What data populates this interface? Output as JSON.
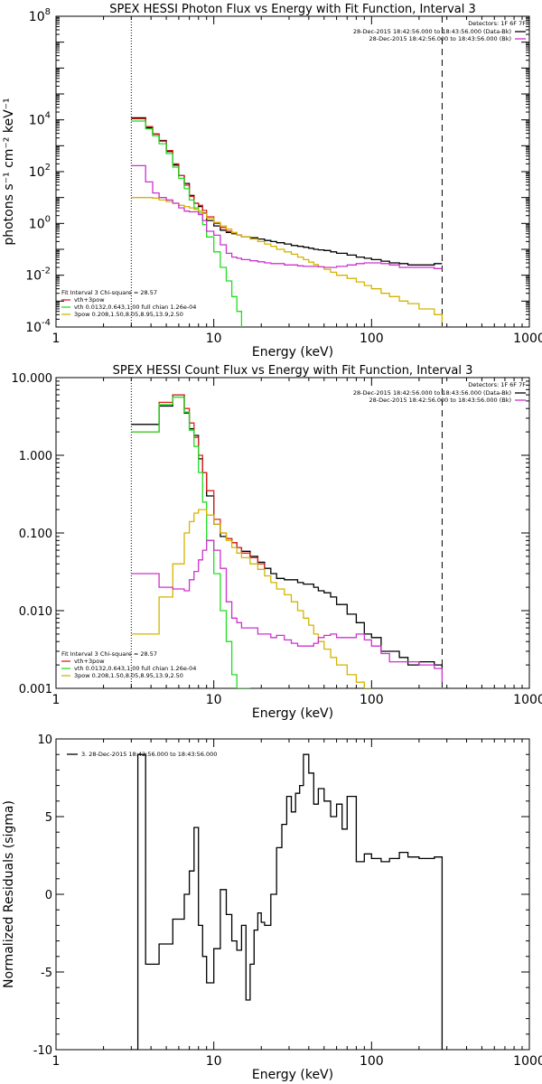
{
  "chart_data": [
    {
      "type": "line",
      "title": "SPEX HESSI Photon Flux vs Energy with Fit Function, Interval 3",
      "xlabel": "Energy (keV)",
      "ylabel": "photons s⁻¹ cm⁻² keV⁻¹",
      "xscale": "log",
      "yscale": "log",
      "xlim": [
        1,
        1000
      ],
      "ylim": [
        0.0001,
        100000000
      ],
      "x_ticks": [
        "1",
        "10",
        "100",
        "1000"
      ],
      "y_ticks": [
        {
          "value": 0.0001,
          "base": "10",
          "exp": "-4"
        },
        {
          "value": 0.01,
          "base": "10",
          "exp": "-2"
        },
        {
          "value": 1,
          "base": "10",
          "exp": "0"
        },
        {
          "value": 100,
          "base": "10",
          "exp": "2"
        },
        {
          "value": 10000,
          "base": "10",
          "exp": "4"
        },
        {
          "value": 100000000,
          "base": "10",
          "exp": "8"
        }
      ],
      "vlines": [
        {
          "x": 3.0,
          "style": "dotted"
        },
        {
          "x": 280,
          "style": "dashed"
        }
      ],
      "detectors_label": "Detectors: 1F 6F 7F",
      "time_labels": [
        {
          "text": "28-Dec-2015 18:42:56.000 to 18:43:56.000 (Data-Bk)",
          "color": "#000000"
        },
        {
          "text": "28-Dec-2015 18:42:56.000 to 18:43:56.000 (Bk)",
          "color": "#cc33cc"
        }
      ],
      "legend_title": "Fit Interval 3   Chi-square = 28.57",
      "legend": [
        {
          "text": "vth+3pow",
          "color": "#e02020"
        },
        {
          "text": "vth 0.0132,0.643,1.00  full chian 1.26e-04",
          "color": "#22dd22"
        },
        {
          "text": "3pow 0.208,1.50,8.05,8.95,13.9,2.50",
          "color": "#d4b400"
        }
      ],
      "series": [
        {
          "name": "Data-Bk",
          "color": "#000000",
          "x": [
            3.0,
            3.3,
            3.7,
            4.1,
            4.5,
            5.0,
            5.5,
            6.0,
            6.5,
            7.0,
            7.5,
            8.0,
            8.5,
            9.0,
            10,
            11,
            12,
            13,
            14,
            15,
            17,
            19,
            21,
            23,
            25,
            28,
            31,
            34,
            37,
            40,
            43,
            46,
            50,
            55,
            60,
            70,
            80,
            90,
            100,
            115,
            130,
            150,
            170,
            200,
            250,
            280
          ],
          "y": [
            12000,
            12000,
            5000,
            2800,
            1600,
            600,
            180,
            70,
            35,
            12,
            6,
            4.5,
            2.5,
            1.3,
            0.8,
            0.55,
            0.45,
            0.4,
            0.35,
            0.3,
            0.28,
            0.25,
            0.22,
            0.2,
            0.18,
            0.16,
            0.14,
            0.13,
            0.12,
            0.11,
            0.1,
            0.095,
            0.09,
            0.08,
            0.07,
            0.06,
            0.05,
            0.045,
            0.04,
            0.035,
            0.03,
            0.028,
            0.025,
            0.025,
            0.028,
            0.028
          ]
        },
        {
          "name": "vth+3pow",
          "color": "#e02020",
          "x": [
            3.0,
            3.3,
            3.7,
            4.1,
            4.5,
            5.0,
            5.5,
            6.0,
            6.5,
            7.0,
            7.5,
            8.0,
            8.5,
            9.0,
            10,
            11,
            12,
            13,
            14,
            15
          ],
          "y": [
            11000,
            11000,
            5500,
            2900,
            1500,
            650,
            200,
            70,
            30,
            11,
            6,
            5,
            3.2,
            1.8,
            1.0,
            0.7,
            0.5,
            0.42,
            0.36,
            0.3
          ]
        },
        {
          "name": "vth",
          "color": "#22dd22",
          "x": [
            3.0,
            3.3,
            3.7,
            4.1,
            4.5,
            5.0,
            5.5,
            6.0,
            6.5,
            7.0,
            7.5,
            8.0,
            8.5,
            9.0,
            10,
            11,
            12,
            13,
            14,
            15
          ],
          "y": [
            9000,
            9000,
            4500,
            2400,
            1200,
            500,
            150,
            55,
            22,
            8,
            4,
            2.5,
            0.9,
            0.3,
            0.08,
            0.02,
            0.006,
            0.0015,
            0.0004,
            0.0001
          ]
        },
        {
          "name": "3pow",
          "color": "#d4b400",
          "x": [
            3.0,
            3.3,
            3.7,
            4.1,
            4.5,
            5.0,
            5.5,
            6.0,
            6.5,
            7.0,
            7.5,
            8.0,
            8.5,
            9.0,
            10,
            11,
            12,
            13,
            14,
            15,
            17,
            19,
            21,
            23,
            25,
            28,
            31,
            34,
            37,
            40,
            43,
            46,
            50,
            55,
            60,
            70,
            80,
            90,
            100,
            115,
            130,
            150,
            170,
            200,
            250,
            280
          ],
          "y": [
            10,
            10,
            10,
            9.5,
            8,
            7,
            6,
            5,
            4.5,
            4,
            3.5,
            3,
            2.4,
            1.6,
            1.1,
            0.8,
            0.6,
            0.45,
            0.35,
            0.3,
            0.25,
            0.2,
            0.16,
            0.13,
            0.1,
            0.08,
            0.065,
            0.05,
            0.04,
            0.032,
            0.026,
            0.021,
            0.017,
            0.013,
            0.01,
            0.0075,
            0.0055,
            0.004,
            0.003,
            0.002,
            0.0015,
            0.001,
            0.0008,
            0.0005,
            0.0003,
            0.00015
          ]
        },
        {
          "name": "Bk",
          "color": "#cc33cc",
          "x": [
            3.0,
            3.3,
            3.7,
            4.1,
            4.5,
            5.0,
            5.5,
            6.0,
            6.5,
            7.0,
            7.5,
            8.0,
            8.5,
            9.0,
            10,
            11,
            12,
            13,
            14,
            15,
            17,
            19,
            21,
            23,
            25,
            28,
            31,
            34,
            37,
            40,
            43,
            46,
            50,
            55,
            60,
            70,
            80,
            90,
            100,
            115,
            130,
            150,
            170,
            200,
            250,
            280
          ],
          "y": [
            170,
            170,
            40,
            15,
            10,
            8,
            6,
            4,
            3,
            2.8,
            2.8,
            2.2,
            1.3,
            0.5,
            0.35,
            0.15,
            0.07,
            0.05,
            0.045,
            0.04,
            0.036,
            0.033,
            0.03,
            0.028,
            0.028,
            0.025,
            0.025,
            0.023,
            0.022,
            0.022,
            0.022,
            0.021,
            0.02,
            0.02,
            0.022,
            0.025,
            0.028,
            0.03,
            0.03,
            0.028,
            0.025,
            0.02,
            0.02,
            0.02,
            0.018,
            0.018
          ]
        }
      ]
    },
    {
      "type": "line",
      "title": "SPEX HESSI Count Flux vs Energy with Fit Function, Interval 3",
      "xlabel": "Energy (keV)",
      "ylabel": "",
      "xscale": "log",
      "yscale": "log",
      "xlim": [
        1,
        1000
      ],
      "ylim": [
        0.001,
        10
      ],
      "x_ticks": [
        "1",
        "10",
        "100",
        "1000"
      ],
      "y_ticks": [
        {
          "value": 0.001,
          "text": "0.001"
        },
        {
          "value": 0.01,
          "text": "0.010"
        },
        {
          "value": 0.1,
          "text": "0.100"
        },
        {
          "value": 1,
          "text": "1.000"
        },
        {
          "value": 10,
          "text": "10.000"
        }
      ],
      "vlines": [
        {
          "x": 3.0,
          "style": "dotted"
        },
        {
          "x": 280,
          "style": "dashed"
        }
      ],
      "detectors_label": "Detectors: 1F 6F 7F",
      "time_labels": [
        {
          "text": "28-Dec-2015 18:42:56.000 to 18:43:56.000 (Data-Bk)",
          "color": "#000000"
        },
        {
          "text": "28-Dec-2015 18:42:56.000 to 18:43:56.000 (Bk)",
          "color": "#cc33cc"
        }
      ],
      "legend_title": "Fit Interval 3   Chi-square = 28.57",
      "legend": [
        {
          "text": "vth+3pow",
          "color": "#e02020"
        },
        {
          "text": "vth 0.0132,0.643,1.00  full chian 1.26e-04",
          "color": "#22dd22"
        },
        {
          "text": "3pow 0.208,1.50,8.05,8.95,13.9,2.50",
          "color": "#d4b400"
        }
      ],
      "series": [
        {
          "name": "Data-Bk",
          "color": "#000000",
          "x": [
            3.0,
            3.7,
            4.5,
            5.5,
            6.5,
            7.0,
            7.5,
            8.0,
            8.5,
            9.0,
            10,
            11,
            12,
            13,
            14,
            15,
            17,
            19,
            21,
            23,
            25,
            28,
            31,
            34,
            37,
            40,
            43,
            46,
            50,
            55,
            60,
            70,
            80,
            90,
            100,
            115,
            130,
            150,
            170,
            200,
            250,
            280
          ],
          "y": [
            2.5,
            2.5,
            4.3,
            6.0,
            3.5,
            2.2,
            1.8,
            0.9,
            0.6,
            0.3,
            0.13,
            0.09,
            0.085,
            0.075,
            0.065,
            0.058,
            0.05,
            0.042,
            0.035,
            0.03,
            0.026,
            0.025,
            0.025,
            0.023,
            0.022,
            0.022,
            0.02,
            0.018,
            0.017,
            0.015,
            0.012,
            0.009,
            0.007,
            0.005,
            0.0045,
            0.003,
            0.003,
            0.0025,
            0.002,
            0.0022,
            0.002,
            0.0018
          ]
        },
        {
          "name": "vth+3pow",
          "color": "#e02020",
          "x": [
            3.0,
            3.7,
            4.5,
            5.5,
            6.5,
            7.0,
            7.5,
            8.0,
            8.5,
            9.0,
            10,
            11,
            12,
            13,
            14,
            15,
            17,
            19,
            21
          ],
          "y": [
            2.0,
            2.0,
            4.8,
            6.0,
            4.0,
            2.6,
            1.7,
            1.0,
            0.6,
            0.35,
            0.15,
            0.1,
            0.085,
            0.075,
            0.065,
            0.055,
            0.048,
            0.04,
            0.035
          ]
        },
        {
          "name": "vth",
          "color": "#22dd22",
          "x": [
            3.0,
            3.7,
            4.5,
            5.5,
            6.5,
            7.0,
            7.5,
            8.0,
            8.5,
            9.0,
            10,
            11,
            12,
            13,
            14,
            15,
            17
          ],
          "y": [
            2.0,
            2.0,
            4.5,
            5.6,
            3.6,
            2.1,
            1.3,
            0.6,
            0.25,
            0.08,
            0.03,
            0.01,
            0.004,
            0.0015,
            0.001,
            0.001,
            0.001
          ]
        },
        {
          "name": "3pow",
          "color": "#d4b400",
          "x": [
            3.0,
            3.7,
            4.5,
            5.5,
            6.5,
            7.0,
            7.5,
            8.0,
            8.5,
            9.0,
            10,
            11,
            12,
            13,
            14,
            15,
            17,
            19,
            21,
            23,
            25,
            28,
            31,
            34,
            37,
            40,
            43,
            46,
            50,
            55,
            60,
            70,
            80,
            90,
            100
          ],
          "y": [
            0.005,
            0.005,
            0.015,
            0.04,
            0.1,
            0.14,
            0.18,
            0.2,
            0.2,
            0.17,
            0.13,
            0.1,
            0.08,
            0.065,
            0.055,
            0.048,
            0.04,
            0.034,
            0.028,
            0.023,
            0.019,
            0.016,
            0.013,
            0.01,
            0.008,
            0.0065,
            0.005,
            0.004,
            0.0032,
            0.0025,
            0.002,
            0.0015,
            0.0012,
            0.001,
            0.001
          ]
        },
        {
          "name": "Bk",
          "color": "#cc33cc",
          "x": [
            3.0,
            3.7,
            4.5,
            5.5,
            6.5,
            7.0,
            7.5,
            8.0,
            8.5,
            9.0,
            10,
            11,
            12,
            13,
            14,
            15,
            17,
            19,
            21,
            23,
            25,
            28,
            31,
            34,
            37,
            40,
            43,
            46,
            50,
            55,
            60,
            70,
            80,
            90,
            100,
            115,
            130,
            150,
            170,
            200,
            250,
            280
          ],
          "y": [
            0.03,
            0.03,
            0.02,
            0.019,
            0.018,
            0.025,
            0.032,
            0.045,
            0.06,
            0.08,
            0.06,
            0.035,
            0.013,
            0.008,
            0.007,
            0.006,
            0.006,
            0.005,
            0.005,
            0.0045,
            0.0048,
            0.0042,
            0.0038,
            0.0035,
            0.0035,
            0.0035,
            0.0038,
            0.0045,
            0.0048,
            0.005,
            0.0045,
            0.0045,
            0.005,
            0.0042,
            0.0035,
            0.0028,
            0.0022,
            0.0022,
            0.0022,
            0.002,
            0.0018,
            0.0012
          ]
        }
      ]
    },
    {
      "type": "line",
      "title": "",
      "xlabel": "Energy (keV)",
      "ylabel": "Normalized Residuals (sigma)",
      "xscale": "log",
      "yscale": "linear",
      "xlim": [
        1,
        1000
      ],
      "ylim": [
        -10,
        10
      ],
      "x_ticks": [
        "1",
        "10",
        "100",
        "1000"
      ],
      "y_ticks": [
        {
          "value": -10,
          "text": "-10"
        },
        {
          "value": -5,
          "text": "-5"
        },
        {
          "value": 0,
          "text": "0"
        },
        {
          "value": 5,
          "text": "5"
        },
        {
          "value": 10,
          "text": "10"
        }
      ],
      "legend": [
        {
          "text": "3. 28-Dec-2015 18:42:56.000 to 18:43:56.000",
          "color": "#000000"
        }
      ],
      "series": [
        {
          "name": "",
          "color": "#000000",
          "x": [
            3.0,
            3.3,
            3.7,
            4.1,
            4.5,
            5.0,
            5.5,
            6.0,
            6.5,
            7.0,
            7.5,
            8.0,
            8.5,
            9.0,
            10,
            11,
            12,
            13,
            14,
            15,
            16,
            17,
            18,
            19,
            20,
            21,
            23,
            25,
            27,
            29,
            31,
            33,
            35,
            37,
            40,
            43,
            46,
            50,
            55,
            60,
            65,
            70,
            80,
            90,
            100,
            115,
            130,
            150,
            170,
            200,
            250,
            280
          ],
          "y": [
            -10,
            9,
            -4.5,
            -4.5,
            -3.2,
            -3.2,
            -1.6,
            -1.6,
            0,
            1.5,
            4.3,
            -2.0,
            -4.0,
            -5.7,
            -3.5,
            0.3,
            -1.3,
            -3.0,
            -3.6,
            -2.0,
            -6.8,
            -4.5,
            -2.3,
            -1.2,
            -1.8,
            -2.0,
            0.0,
            3.0,
            4.5,
            6.3,
            5.3,
            6.5,
            7.0,
            9.0,
            7.8,
            5.8,
            6.8,
            6.0,
            5.0,
            5.8,
            4.2,
            6.3,
            2.1,
            2.6,
            2.3,
            2.1,
            2.3,
            2.7,
            2.4,
            2.3,
            2.4,
            -10
          ]
        }
      ]
    }
  ]
}
